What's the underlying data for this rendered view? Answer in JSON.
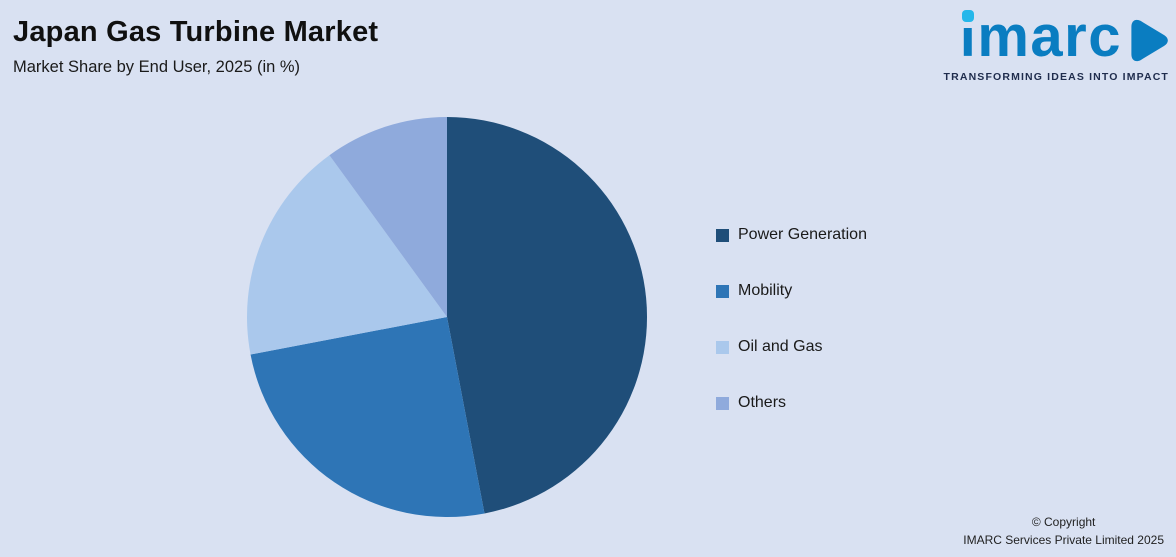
{
  "header": {
    "title": "Japan Gas Turbine Market",
    "subtitle": "Market Share by End User, 2025 (in %)"
  },
  "logo": {
    "text": "imarc",
    "tagline": "TRANSFORMING IDEAS INTO IMPACT",
    "brand_blue": "#0a7dc1",
    "brand_cyan": "#25b7ea"
  },
  "chart_data": {
    "type": "pie",
    "title": "Japan Gas Turbine Market",
    "subtitle": "Market Share by End User, 2025 (in %)",
    "unit": "%",
    "categories": [
      "Power Generation",
      "Mobility",
      "Oil and Gas",
      "Others"
    ],
    "values": [
      47,
      25,
      18,
      10
    ],
    "colors": [
      "#1f4e79",
      "#2e75b6",
      "#aac8ec",
      "#8faadc"
    ],
    "legend_position": "right",
    "start_angle_deg": 0,
    "direction": "clockwise",
    "background": "#d9e1f2"
  },
  "footer": {
    "line1": "© Copyright",
    "line2": "IMARC Services Private Limited 2025"
  }
}
